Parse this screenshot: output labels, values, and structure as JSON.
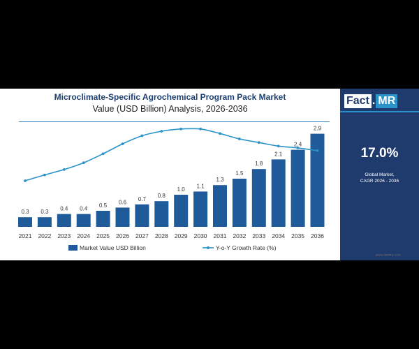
{
  "chart_data": {
    "type": "bar",
    "title": "Microclimate-Specific Agrochemical Program Pack Market",
    "subtitle": "Value (USD Billion) Analysis, 2026-2036",
    "categories": [
      "2021",
      "2022",
      "2023",
      "2024",
      "2025",
      "2026",
      "2027",
      "2028",
      "2029",
      "2030",
      "2031",
      "2032",
      "2033",
      "2034",
      "2035",
      "2036"
    ],
    "series": [
      {
        "name": "Market Value USD Billion",
        "type": "bar",
        "values": [
          0.3,
          0.3,
          0.4,
          0.4,
          0.5,
          0.6,
          0.7,
          0.8,
          1.0,
          1.1,
          1.3,
          1.5,
          1.8,
          2.1,
          2.4,
          2.9
        ],
        "labels": [
          "0.3",
          "0.3",
          "0.4",
          "0.4",
          "0.5",
          "0.6",
          "0.7",
          "0.8",
          "1.0",
          "1.1",
          "1.3",
          "1.5",
          "1.8",
          "2.1",
          "2.4",
          "2.9"
        ],
        "color": "#1f5a9a"
      },
      {
        "name": "Y-o-Y Growth Rate (%)",
        "type": "line",
        "values": [
          10.5,
          11.8,
          13.0,
          14.5,
          16.5,
          18.7,
          20.5,
          21.5,
          22.0,
          22.0,
          21.0,
          19.8,
          19.0,
          18.2,
          17.8,
          17.2
        ],
        "color": "#2a93c9"
      }
    ],
    "legend_position": "bottom",
    "grid": false
  },
  "brand": {
    "logo_part1": "Fact",
    "logo_dot": ".",
    "logo_part2": "MR",
    "footer_url": "www.factmr.com"
  },
  "highlight": {
    "value": "17.0%",
    "label_line1": "Global Market,",
    "label_line2": "CAGR 2026 - 2036"
  },
  "colors": {
    "navy": "#1f3b6e",
    "bar": "#1f5a9a",
    "line": "#2a93c9",
    "title": "#1d3f72"
  }
}
